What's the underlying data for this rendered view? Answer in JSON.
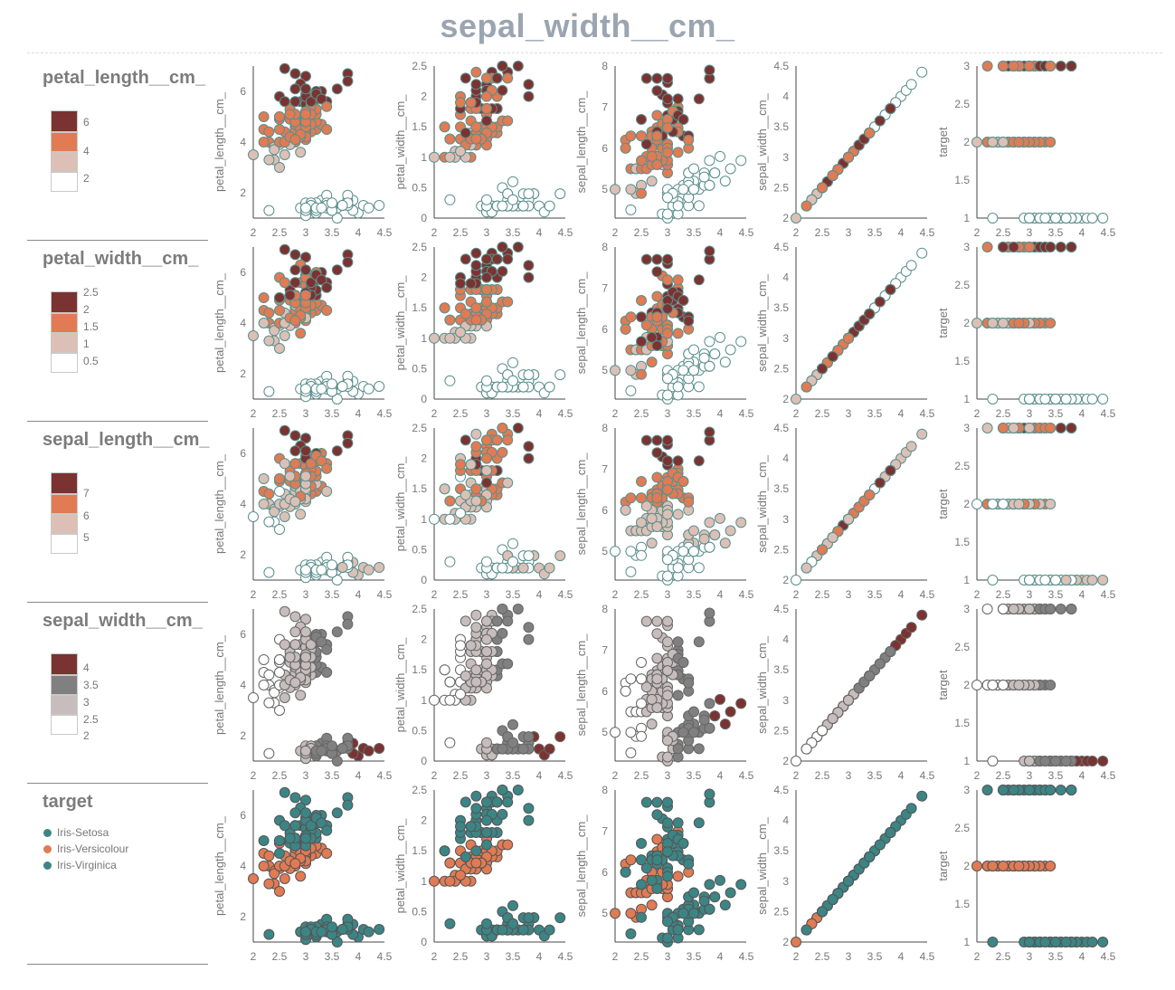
{
  "title": "sepal_width__cm_",
  "colors": {
    "title": "#9aa5b1",
    "dark_red": "#7b3331",
    "orange": "#e07b54",
    "pale": "#dcc0b6",
    "white": "#ffffff",
    "gray": "#808080",
    "light_gray": "#c7bdbd",
    "teal": "#3c8585",
    "outline": "#5a8f8c"
  },
  "legends": [
    {
      "title": "petal_length__cm_",
      "type": "continuous",
      "ticks": [
        "6",
        "4",
        "2"
      ]
    },
    {
      "title": "petal_width__cm_",
      "type": "continuous",
      "ticks": [
        "2.5",
        "2",
        "1.5",
        "1",
        "0.5"
      ]
    },
    {
      "title": "sepal_length__cm_",
      "type": "continuous",
      "ticks": [
        "7",
        "6",
        "5"
      ]
    },
    {
      "title": "sepal_width__cm_",
      "type": "continuous",
      "ticks": [
        "4",
        "3.5",
        "3",
        "2.5",
        "2"
      ]
    },
    {
      "title": "target",
      "type": "categorical",
      "categories": [
        "Iris-Setosa",
        "Iris-Versicolour",
        "Iris-Virginica"
      ],
      "category_colors": [
        "#3c8585",
        "#e07b54",
        "#3c8585"
      ]
    }
  ],
  "chart_data": {
    "type": "scatter",
    "layout": "scatter-matrix 5 rows x 5 columns",
    "x_variable": "sepal_width__cm_",
    "xlim": [
      2,
      4.5
    ],
    "x_ticks": [
      "2",
      "2.5",
      "3",
      "3.5",
      "4",
      "4.5"
    ],
    "row_color_by": [
      "petal_length__cm_",
      "petal_width__cm_",
      "sepal_length__cm_",
      "sepal_width__cm_",
      "target"
    ],
    "panels": [
      {
        "ylabel": "petal_length__cm_",
        "ylim": [
          1,
          7
        ],
        "y_ticks": [
          "6",
          "4",
          "2"
        ]
      },
      {
        "ylabel": "petal_width__cm_",
        "ylim": [
          0,
          2.5
        ],
        "y_ticks": [
          "2.5",
          "2",
          "1.5",
          "1",
          "0.5",
          "0"
        ]
      },
      {
        "ylabel": "sepal_length__cm_",
        "ylim": [
          4.3,
          8
        ],
        "y_ticks": [
          "8",
          "7",
          "6",
          "5"
        ]
      },
      {
        "ylabel": "sepal_width__cm_",
        "ylim": [
          2,
          4.5
        ],
        "y_ticks": [
          "4.5",
          "4",
          "3.5",
          "3",
          "2.5",
          "2"
        ]
      },
      {
        "ylabel": "target",
        "ylim": [
          1,
          3
        ],
        "y_ticks": [
          "3",
          "2.5",
          "2",
          "1.5",
          "1"
        ]
      }
    ],
    "points": {
      "fields": [
        "sepal_width",
        "petal_length",
        "petal_width",
        "sepal_length",
        "target"
      ],
      "rows": [
        [
          3.5,
          1.4,
          0.2,
          5.1,
          1
        ],
        [
          3.0,
          1.4,
          0.2,
          4.9,
          1
        ],
        [
          3.2,
          1.3,
          0.2,
          4.7,
          1
        ],
        [
          3.1,
          1.5,
          0.2,
          4.6,
          1
        ],
        [
          3.6,
          1.4,
          0.2,
          5.0,
          1
        ],
        [
          3.9,
          1.7,
          0.4,
          5.4,
          1
        ],
        [
          3.4,
          1.4,
          0.3,
          4.6,
          1
        ],
        [
          3.4,
          1.5,
          0.2,
          5.0,
          1
        ],
        [
          2.9,
          1.4,
          0.2,
          4.4,
          1
        ],
        [
          3.1,
          1.5,
          0.1,
          4.9,
          1
        ],
        [
          3.7,
          1.5,
          0.2,
          5.4,
          1
        ],
        [
          3.4,
          1.6,
          0.2,
          4.8,
          1
        ],
        [
          3.0,
          1.4,
          0.1,
          4.8,
          1
        ],
        [
          3.0,
          1.1,
          0.1,
          4.3,
          1
        ],
        [
          4.0,
          1.2,
          0.2,
          5.8,
          1
        ],
        [
          4.4,
          1.5,
          0.4,
          5.7,
          1
        ],
        [
          3.9,
          1.3,
          0.4,
          5.4,
          1
        ],
        [
          3.5,
          1.4,
          0.3,
          5.1,
          1
        ],
        [
          3.8,
          1.7,
          0.3,
          5.7,
          1
        ],
        [
          3.8,
          1.5,
          0.3,
          5.1,
          1
        ],
        [
          3.4,
          1.7,
          0.2,
          5.4,
          1
        ],
        [
          3.7,
          1.5,
          0.4,
          5.1,
          1
        ],
        [
          3.6,
          1.0,
          0.2,
          4.6,
          1
        ],
        [
          3.3,
          1.7,
          0.5,
          5.1,
          1
        ],
        [
          3.4,
          1.9,
          0.2,
          4.8,
          1
        ],
        [
          3.0,
          1.6,
          0.2,
          5.0,
          1
        ],
        [
          3.4,
          1.6,
          0.4,
          5.0,
          1
        ],
        [
          3.5,
          1.5,
          0.2,
          5.2,
          1
        ],
        [
          3.4,
          1.4,
          0.2,
          5.2,
          1
        ],
        [
          3.2,
          1.6,
          0.2,
          4.7,
          1
        ],
        [
          3.1,
          1.6,
          0.2,
          4.8,
          1
        ],
        [
          3.4,
          1.5,
          0.4,
          5.4,
          1
        ],
        [
          4.1,
          1.5,
          0.1,
          5.2,
          1
        ],
        [
          4.2,
          1.4,
          0.2,
          5.5,
          1
        ],
        [
          3.1,
          1.5,
          0.1,
          4.9,
          1
        ],
        [
          3.2,
          1.2,
          0.2,
          5.0,
          1
        ],
        [
          3.5,
          1.3,
          0.2,
          5.5,
          1
        ],
        [
          3.1,
          1.5,
          0.1,
          4.9,
          1
        ],
        [
          3.0,
          1.3,
          0.2,
          4.4,
          1
        ],
        [
          3.4,
          1.5,
          0.2,
          5.1,
          1
        ],
        [
          3.5,
          1.3,
          0.3,
          5.0,
          1
        ],
        [
          2.3,
          1.3,
          0.3,
          4.5,
          1
        ],
        [
          3.2,
          1.3,
          0.2,
          4.4,
          1
        ],
        [
          3.5,
          1.6,
          0.6,
          5.0,
          1
        ],
        [
          3.8,
          1.9,
          0.4,
          5.1,
          1
        ],
        [
          3.0,
          1.4,
          0.3,
          4.8,
          1
        ],
        [
          3.8,
          1.6,
          0.2,
          5.1,
          1
        ],
        [
          3.2,
          1.4,
          0.2,
          4.6,
          1
        ],
        [
          3.7,
          1.5,
          0.2,
          5.3,
          1
        ],
        [
          3.3,
          1.4,
          0.2,
          5.0,
          1
        ],
        [
          3.2,
          4.7,
          1.4,
          7.0,
          2
        ],
        [
          3.2,
          4.5,
          1.5,
          6.4,
          2
        ],
        [
          3.1,
          4.9,
          1.5,
          6.9,
          2
        ],
        [
          2.3,
          4.0,
          1.3,
          5.5,
          2
        ],
        [
          2.8,
          4.6,
          1.5,
          6.5,
          2
        ],
        [
          2.8,
          4.5,
          1.3,
          5.7,
          2
        ],
        [
          3.3,
          4.7,
          1.6,
          6.3,
          2
        ],
        [
          2.4,
          3.3,
          1.0,
          4.9,
          2
        ],
        [
          2.9,
          4.6,
          1.3,
          6.6,
          2
        ],
        [
          2.7,
          3.9,
          1.4,
          5.2,
          2
        ],
        [
          2.0,
          3.5,
          1.0,
          5.0,
          2
        ],
        [
          3.0,
          4.2,
          1.5,
          5.9,
          2
        ],
        [
          2.2,
          4.0,
          1.0,
          6.0,
          2
        ],
        [
          2.9,
          4.7,
          1.4,
          6.1,
          2
        ],
        [
          2.9,
          3.6,
          1.3,
          5.6,
          2
        ],
        [
          3.1,
          4.4,
          1.4,
          6.7,
          2
        ],
        [
          3.0,
          4.5,
          1.5,
          5.6,
          2
        ],
        [
          2.7,
          4.1,
          1.0,
          5.8,
          2
        ],
        [
          2.2,
          4.5,
          1.5,
          6.2,
          2
        ],
        [
          2.5,
          3.9,
          1.1,
          5.6,
          2
        ],
        [
          3.2,
          4.8,
          1.8,
          5.9,
          2
        ],
        [
          2.8,
          4.0,
          1.3,
          6.1,
          2
        ],
        [
          2.5,
          4.9,
          1.5,
          6.3,
          2
        ],
        [
          2.8,
          4.7,
          1.2,
          6.1,
          2
        ],
        [
          2.9,
          4.3,
          1.3,
          6.4,
          2
        ],
        [
          3.0,
          4.4,
          1.4,
          6.6,
          2
        ],
        [
          2.8,
          4.8,
          1.4,
          6.8,
          2
        ],
        [
          3.0,
          5.0,
          1.7,
          6.7,
          2
        ],
        [
          2.9,
          4.5,
          1.5,
          6.0,
          2
        ],
        [
          2.6,
          3.5,
          1.0,
          5.7,
          2
        ],
        [
          2.4,
          3.8,
          1.1,
          5.5,
          2
        ],
        [
          2.4,
          3.7,
          1.0,
          5.5,
          2
        ],
        [
          2.7,
          3.9,
          1.2,
          5.8,
          2
        ],
        [
          2.7,
          5.1,
          1.6,
          6.0,
          2
        ],
        [
          3.0,
          4.5,
          1.5,
          5.4,
          2
        ],
        [
          3.4,
          4.5,
          1.6,
          6.0,
          2
        ],
        [
          3.1,
          4.7,
          1.5,
          6.7,
          2
        ],
        [
          2.3,
          4.4,
          1.3,
          6.3,
          2
        ],
        [
          3.0,
          4.1,
          1.3,
          5.6,
          2
        ],
        [
          2.5,
          4.0,
          1.3,
          5.5,
          2
        ],
        [
          2.6,
          4.4,
          1.2,
          5.5,
          2
        ],
        [
          3.0,
          4.6,
          1.4,
          6.1,
          2
        ],
        [
          2.6,
          4.0,
          1.2,
          5.8,
          2
        ],
        [
          2.3,
          3.3,
          1.0,
          5.0,
          2
        ],
        [
          2.7,
          4.2,
          1.3,
          5.6,
          2
        ],
        [
          3.0,
          4.2,
          1.2,
          5.7,
          2
        ],
        [
          2.9,
          4.2,
          1.3,
          5.7,
          2
        ],
        [
          2.9,
          4.3,
          1.3,
          6.2,
          2
        ],
        [
          2.5,
          3.0,
          1.1,
          5.1,
          2
        ],
        [
          2.8,
          4.1,
          1.3,
          5.7,
          2
        ],
        [
          3.3,
          6.0,
          2.5,
          6.3,
          3
        ],
        [
          2.7,
          5.1,
          1.9,
          5.8,
          3
        ],
        [
          3.0,
          5.9,
          2.1,
          7.1,
          3
        ],
        [
          2.9,
          5.6,
          1.8,
          6.3,
          3
        ],
        [
          3.0,
          5.8,
          2.2,
          6.5,
          3
        ],
        [
          3.0,
          6.6,
          2.1,
          7.6,
          3
        ],
        [
          2.5,
          4.5,
          1.7,
          4.9,
          3
        ],
        [
          2.9,
          6.3,
          1.8,
          7.3,
          3
        ],
        [
          2.5,
          5.8,
          1.8,
          6.7,
          3
        ],
        [
          3.6,
          6.1,
          2.5,
          7.2,
          3
        ],
        [
          3.2,
          5.1,
          2.0,
          6.5,
          3
        ],
        [
          2.7,
          5.3,
          1.9,
          6.4,
          3
        ],
        [
          3.0,
          5.5,
          2.1,
          6.8,
          3
        ],
        [
          2.5,
          5.0,
          2.0,
          5.7,
          3
        ],
        [
          2.8,
          5.1,
          2.4,
          5.8,
          3
        ],
        [
          3.2,
          5.3,
          2.3,
          6.4,
          3
        ],
        [
          3.0,
          5.5,
          1.8,
          6.5,
          3
        ],
        [
          3.8,
          6.7,
          2.2,
          7.7,
          3
        ],
        [
          2.6,
          6.9,
          2.3,
          7.7,
          3
        ],
        [
          2.2,
          5.0,
          1.5,
          6.0,
          3
        ],
        [
          3.2,
          5.7,
          2.3,
          6.9,
          3
        ],
        [
          2.8,
          4.9,
          2.0,
          5.6,
          3
        ],
        [
          2.8,
          6.7,
          2.0,
          7.7,
          3
        ],
        [
          2.7,
          4.9,
          1.8,
          6.3,
          3
        ],
        [
          3.3,
          5.7,
          2.1,
          6.7,
          3
        ],
        [
          3.2,
          6.0,
          1.8,
          7.2,
          3
        ],
        [
          2.8,
          4.8,
          1.8,
          6.2,
          3
        ],
        [
          3.0,
          4.9,
          1.8,
          6.1,
          3
        ],
        [
          2.8,
          5.6,
          2.1,
          6.4,
          3
        ],
        [
          3.0,
          5.8,
          1.6,
          7.2,
          3
        ],
        [
          2.8,
          6.1,
          1.9,
          7.4,
          3
        ],
        [
          3.8,
          6.4,
          2.0,
          7.9,
          3
        ],
        [
          2.8,
          5.6,
          2.2,
          6.4,
          3
        ],
        [
          2.8,
          5.1,
          1.5,
          6.3,
          3
        ],
        [
          2.6,
          5.6,
          1.4,
          6.1,
          3
        ],
        [
          3.0,
          6.1,
          2.3,
          7.7,
          3
        ],
        [
          3.4,
          5.6,
          2.4,
          6.3,
          3
        ],
        [
          3.1,
          5.5,
          1.8,
          6.4,
          3
        ],
        [
          3.0,
          4.8,
          1.8,
          6.0,
          3
        ],
        [
          3.1,
          5.4,
          2.1,
          6.9,
          3
        ],
        [
          3.1,
          5.6,
          2.4,
          6.7,
          3
        ],
        [
          3.1,
          5.1,
          2.3,
          6.9,
          3
        ],
        [
          2.7,
          5.1,
          1.9,
          5.8,
          3
        ],
        [
          3.2,
          5.9,
          2.3,
          6.8,
          3
        ],
        [
          3.3,
          5.7,
          2.5,
          6.7,
          3
        ],
        [
          3.0,
          5.2,
          2.3,
          6.7,
          3
        ],
        [
          2.5,
          5.0,
          1.9,
          6.3,
          3
        ],
        [
          3.0,
          5.2,
          2.0,
          6.5,
          3
        ],
        [
          3.4,
          5.4,
          2.3,
          6.2,
          3
        ],
        [
          3.0,
          5.1,
          1.8,
          5.9,
          3
        ]
      ]
    }
  }
}
